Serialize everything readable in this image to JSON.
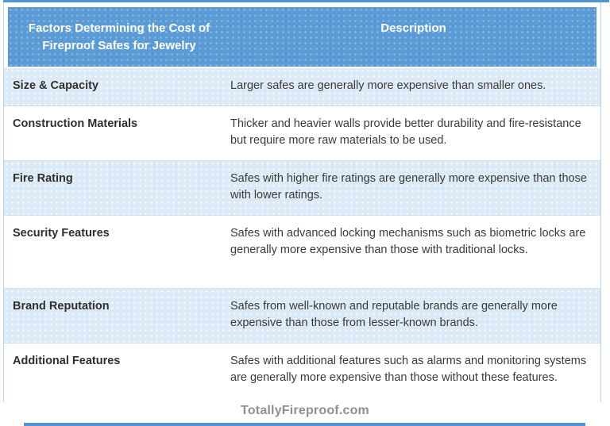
{
  "colors": {
    "header_bg": "#5b9bd5",
    "accent_strip": "#4f96d8",
    "row_alt_bg": "#dce9f7",
    "row_bg": "#ffffff",
    "table_border": "#b7d3ee",
    "header_text": "#ffffff",
    "body_text": "#3a3a3a",
    "footer_text": "#8f8f8f"
  },
  "table": {
    "columns": [
      {
        "label": "Factors Determining the Cost of Fireproof Safes for Jewelry"
      },
      {
        "label": "Description"
      }
    ],
    "rows": [
      {
        "factor": "Size & Capacity",
        "description": "Larger safes are generally more expensive than smaller ones."
      },
      {
        "factor": "Construction Materials",
        "description": "Thicker and heavier walls provide better durability and fire-resistance but require more raw materials to be used."
      },
      {
        "factor": "Fire Rating",
        "description": "Safes with higher fire ratings are generally more expensive than those with lower ratings."
      },
      {
        "factor": "Security Features",
        "description": "Safes with advanced locking mechanisms such as biometric locks are generally more expensive than those with traditional locks."
      },
      {
        "factor": "Brand Reputation",
        "description": "Safes from well-known and reputable brands are generally more expensive than those from lesser-known brands."
      },
      {
        "factor": "Additional Features",
        "description": "Safes with additional features such as alarms and monitoring systems are generally more expensive than those without these features."
      }
    ]
  },
  "footer": {
    "text": "TotallyFireproof.com"
  }
}
